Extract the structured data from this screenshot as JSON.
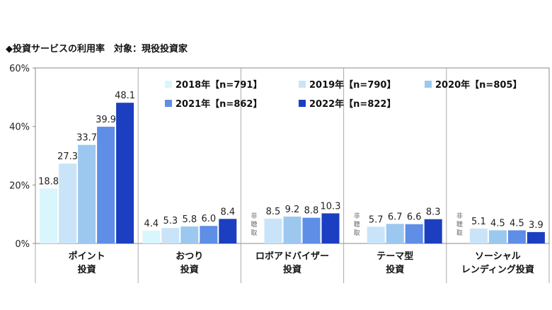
{
  "title": "◆投資サービスの利用率　対象：現役投資家",
  "chart_data": {
    "type": "bar",
    "title": "◆投資サービスの利用率　対象：現役投資家",
    "xlabel": "",
    "ylabel": "",
    "ylim": [
      0,
      60
    ],
    "y_ticks": [
      "0%",
      "20%",
      "40%",
      "60%"
    ],
    "grid": false,
    "legend_position": "top",
    "categories": [
      [
        "ポイント",
        "投資"
      ],
      [
        "おつり",
        "投資"
      ],
      [
        "ロボアドバイザー",
        "投資"
      ],
      [
        "テーマ型",
        "投資"
      ],
      [
        "ソーシャル",
        "レンディング投資"
      ]
    ],
    "not_surveyed_label": [
      "非",
      "聴",
      "取"
    ],
    "series": [
      {
        "name": "2018年【n=791】",
        "color": "#d9f6fc",
        "values": [
          18.8,
          4.4,
          null,
          null,
          null
        ],
        "labels": [
          "18.8",
          "4.4",
          "",
          "",
          ""
        ]
      },
      {
        "name": "2019年【n=790】",
        "color": "#c9e4f8",
        "values": [
          27.3,
          5.3,
          8.5,
          5.7,
          5.1
        ],
        "labels": [
          "27.3",
          "5.3",
          "8.5",
          "5.7",
          "5.1"
        ]
      },
      {
        "name": "2020年【n=805】",
        "color": "#9cc8f0",
        "values": [
          33.7,
          5.8,
          9.2,
          6.7,
          4.5
        ],
        "labels": [
          "33.7",
          "5.8",
          "9.2",
          "6.7",
          "4.5"
        ]
      },
      {
        "name": "2021年【n=862】",
        "color": "#5e8ee6",
        "values": [
          39.9,
          6.0,
          8.8,
          6.6,
          4.5
        ],
        "labels": [
          "39.9",
          "6.0",
          "8.8",
          "6.6",
          "4.5"
        ]
      },
      {
        "name": "2022年【n=822】",
        "color": "#1b3fc0",
        "values": [
          48.1,
          8.4,
          10.3,
          8.3,
          3.9
        ],
        "labels": [
          "48.1",
          "8.4",
          "10.3",
          "8.3",
          "3.9"
        ]
      }
    ]
  }
}
